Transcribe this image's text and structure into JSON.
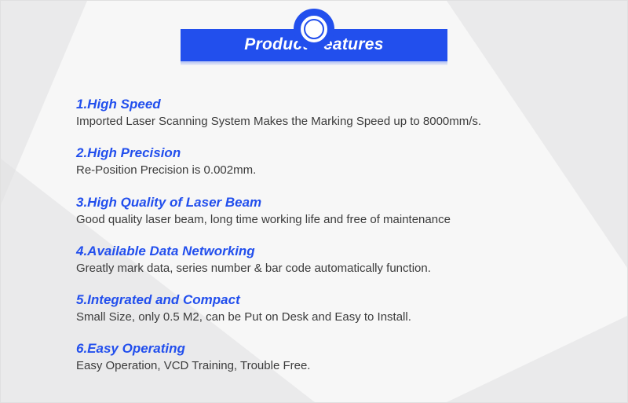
{
  "colors": {
    "accent": "#224fed",
    "text": "#3b3b3b",
    "page_bg": "#f7f7f7",
    "shape_bg": "#e0e0e2"
  },
  "banner": {
    "title": "Product Features"
  },
  "features": [
    {
      "title": "1.High Speed",
      "desc": "Imported Laser Scanning System Makes the Marking Speed up to 8000mm/s."
    },
    {
      "title": "2.High Precision",
      "desc": "Re-Position Precision is 0.002mm."
    },
    {
      "title": "3.High Quality of Laser Beam",
      "desc": "Good quality laser beam, long time working life and free of maintenance"
    },
    {
      "title": "4.Available Data Networking",
      "desc": "Greatly mark data, series number & bar code automatically function."
    },
    {
      "title": "5.Integrated and Compact",
      "desc": "Small Size, only 0.5 M2, can be Put on Desk and Easy to Install."
    },
    {
      "title": "6.Easy Operating",
      "desc": "Easy Operation, VCD Training, Trouble Free."
    }
  ]
}
